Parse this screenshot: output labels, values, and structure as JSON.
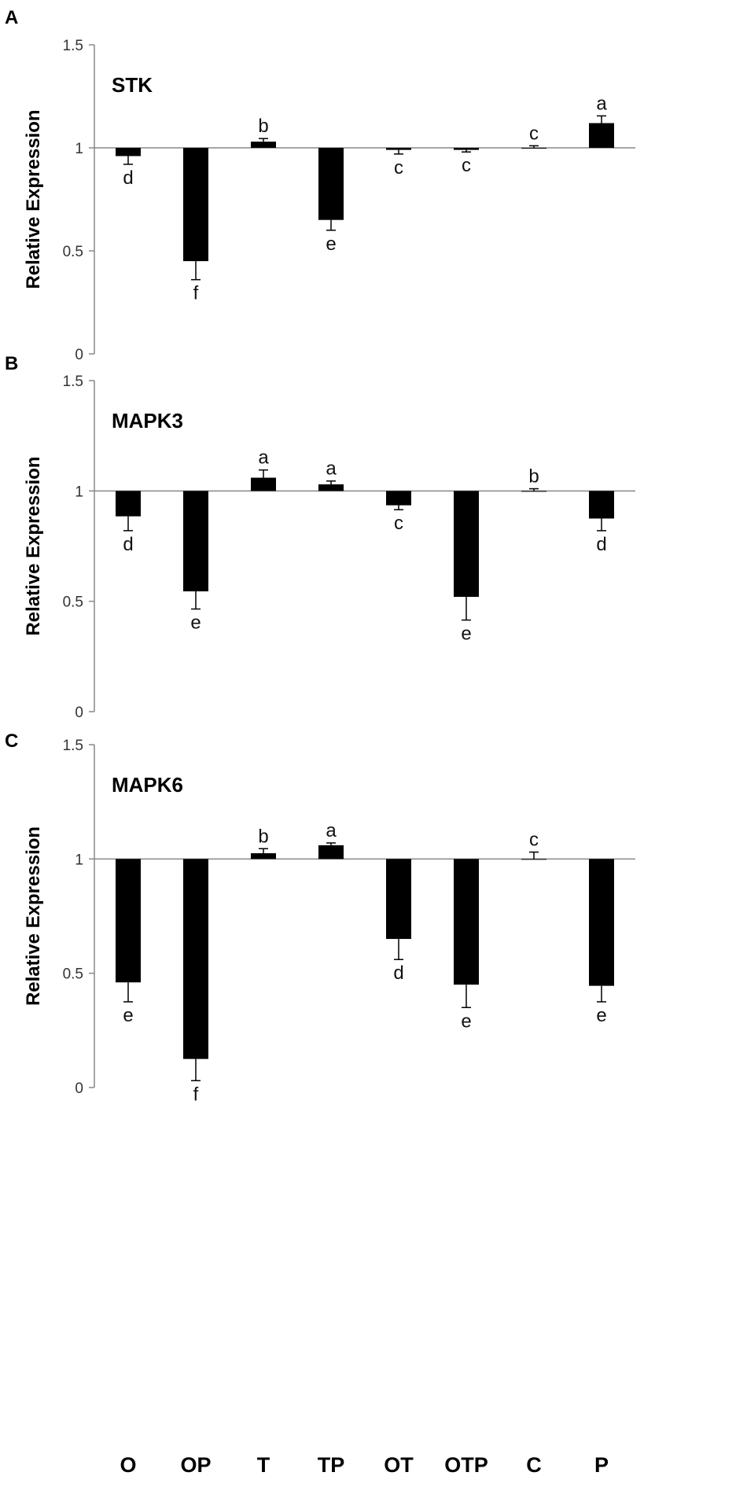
{
  "chart_data": {
    "type": "bar",
    "categories": [
      "O",
      "OP",
      "T",
      "TP",
      "OT",
      "OTP",
      "C",
      "P"
    ],
    "ylabel": "Relative Expression",
    "ylim": [
      0,
      1.5
    ],
    "yticks": [
      "0",
      "0.5",
      "1",
      "1.5"
    ],
    "baseline": 1,
    "grid": false,
    "panels": [
      {
        "letter": "A",
        "title": "STK",
        "values": [
          0.96,
          0.45,
          1.03,
          0.65,
          0.99,
          0.99,
          1.0,
          1.12
        ],
        "errors": [
          0.04,
          0.09,
          0.015,
          0.05,
          0.02,
          0.01,
          0.01,
          0.035
        ],
        "letters": [
          "d",
          "f",
          "b",
          "e",
          "c",
          "c",
          "c",
          "a"
        ]
      },
      {
        "letter": "B",
        "title": "MAPK3",
        "values": [
          0.885,
          0.545,
          1.06,
          1.03,
          0.935,
          0.52,
          1.0,
          0.875
        ],
        "errors": [
          0.065,
          0.08,
          0.035,
          0.015,
          0.02,
          0.105,
          0.01,
          0.055
        ],
        "letters": [
          "d",
          "e",
          "a",
          "a",
          "c",
          "e",
          "b",
          "d"
        ]
      },
      {
        "letter": "C",
        "title": "MAPK6",
        "values": [
          0.46,
          0.125,
          1.025,
          1.06,
          0.65,
          0.45,
          1.0,
          0.445
        ],
        "errors": [
          0.085,
          0.095,
          0.02,
          0.01,
          0.09,
          0.1,
          0.03,
          0.07
        ],
        "letters": [
          "e",
          "f",
          "b",
          "a",
          "d",
          "e",
          "c",
          "e"
        ]
      }
    ]
  }
}
